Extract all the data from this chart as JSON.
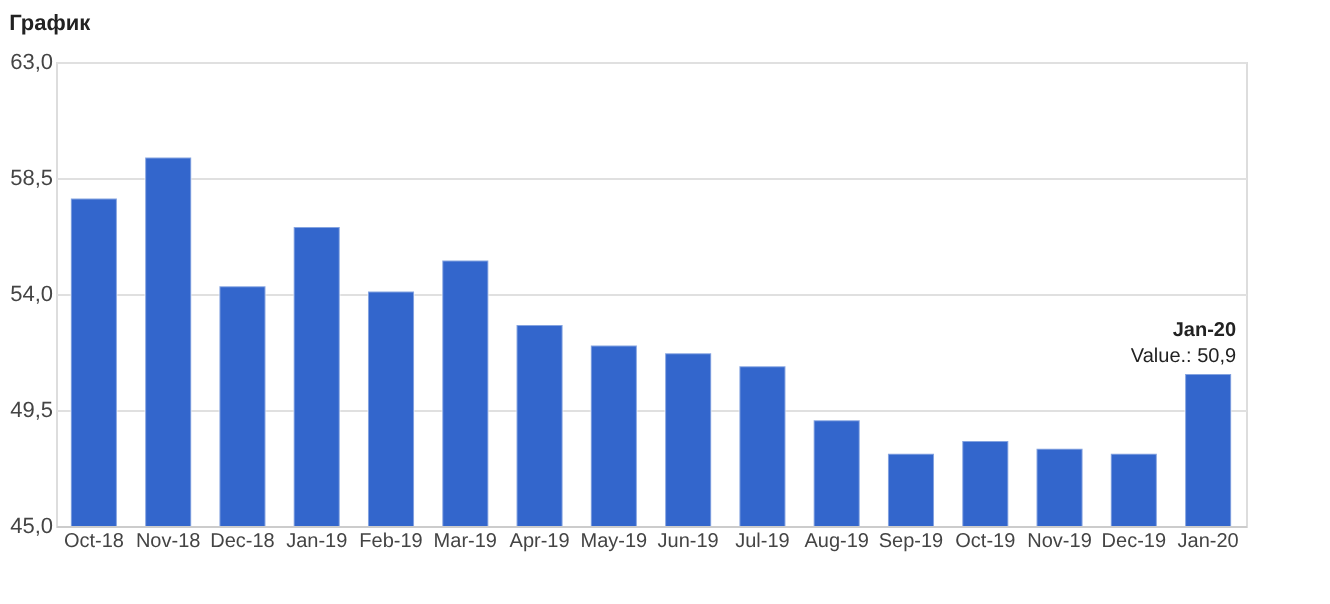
{
  "chart_data": {
    "type": "bar",
    "title": "График",
    "categories": [
      "Oct-18",
      "Nov-18",
      "Dec-18",
      "Jan-19",
      "Feb-19",
      "Mar-19",
      "Apr-19",
      "May-19",
      "Jun-19",
      "Jul-19",
      "Aug-19",
      "Sep-19",
      "Oct-19",
      "Nov-19",
      "Dec-19",
      "Jan-20"
    ],
    "values": [
      57.7,
      59.3,
      54.3,
      56.6,
      54.1,
      55.3,
      52.8,
      52.0,
      51.7,
      51.2,
      49.1,
      47.8,
      48.3,
      48.0,
      47.8,
      50.9
    ],
    "color": "#3366cc",
    "ylim": [
      45,
      63
    ],
    "yticks": [
      {
        "value": 45,
        "label": "45,0"
      },
      {
        "value": 49.5,
        "label": "49,5"
      },
      {
        "value": 54,
        "label": "54,0"
      },
      {
        "value": 58.5,
        "label": "58,5"
      },
      {
        "value": 63,
        "label": "63,0"
      }
    ],
    "grid": "y",
    "annotations": [
      {
        "text": "Jan-20",
        "x": "Jan-20",
        "y": 50.9
      },
      {
        "text": "Value.: 50,9",
        "x": "Jan-20",
        "y": 50.9
      }
    ]
  }
}
